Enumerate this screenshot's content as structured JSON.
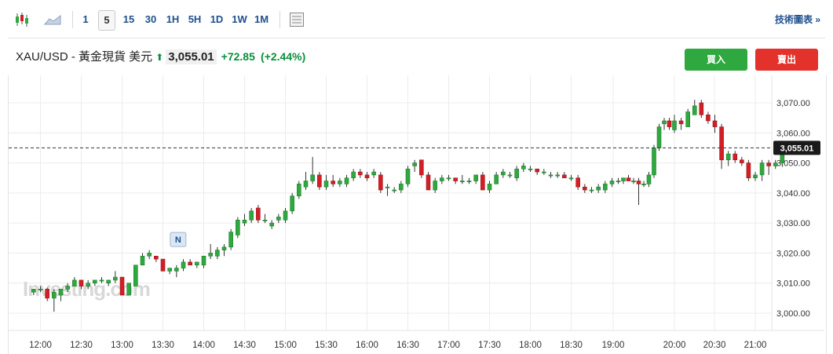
{
  "toolbar": {
    "icons": [
      "candlestick-icon",
      "area-chart-icon",
      "settings-panel-icon"
    ],
    "intervals": [
      "1",
      "5",
      "15",
      "30",
      "1H",
      "5H",
      "1D",
      "1W",
      "1M"
    ],
    "active_interval": "5",
    "tech_chart_link": "技術圖表 »"
  },
  "header": {
    "symbol": "XAU/USD - 黃金現貨 美元",
    "arrow": "⬆",
    "price": "3,055.01",
    "change": "+72.85",
    "change_pct": "(+2.44%)",
    "buy_label": "買入",
    "sell_label": "賣出"
  },
  "watermark": "Investing.com",
  "event_marker": "N",
  "colors": {
    "up": "#2ea83f",
    "down": "#d21f26",
    "accent": "#1f4f8c",
    "price_tag": "#1a1a1a"
  },
  "chart_data": {
    "type": "candlestick",
    "title": "",
    "xlabel": "",
    "ylabel": "",
    "ylim": [
      2995,
      3073
    ],
    "yticks": [
      3000,
      3010,
      3020,
      3030,
      3040,
      3050,
      3060,
      3070
    ],
    "ytick_labels": [
      "3,000.00",
      "3,010.00",
      "3,020.00",
      "3,030.00",
      "3,040.00",
      "3,050.00",
      "3,060.00",
      "3,070.00"
    ],
    "xtick_labels": [
      "12:00",
      "12:30",
      "13:00",
      "13:30",
      "14:00",
      "14:30",
      "15:00",
      "15:30",
      "16:00",
      "16:30",
      "17:00",
      "17:30",
      "18:00",
      "18:30",
      "19:00",
      "20:00",
      "20:30",
      "21:00"
    ],
    "grid": true,
    "current_price": 3055.01,
    "current_price_label": "3,055.01",
    "candles": [
      [
        "11:55",
        3007,
        3008,
        3006,
        3008
      ],
      [
        "12:00",
        3008,
        3009,
        3007,
        3008
      ],
      [
        "12:05",
        3008,
        3008.5,
        3004,
        3005
      ],
      [
        "12:10",
        3005,
        3008,
        3000.5,
        3007
      ],
      [
        "12:15",
        3006,
        3008,
        3004,
        3008
      ],
      [
        "12:20",
        3008,
        3010,
        3007,
        3009
      ],
      [
        "12:25",
        3009,
        3012,
        3009,
        3011
      ],
      [
        "12:30",
        3011,
        3011,
        3008,
        3009
      ],
      [
        "12:35",
        3009,
        3011,
        3008,
        3010
      ],
      [
        "12:40",
        3010,
        3011,
        3009,
        3011
      ],
      [
        "12:45",
        3011,
        3012,
        3010,
        3011
      ],
      [
        "12:50",
        3010,
        3011,
        3009,
        3011
      ],
      [
        "12:55",
        3011,
        3014,
        3010,
        3012
      ],
      [
        "13:00",
        3012,
        3012,
        3006,
        3006
      ],
      [
        "13:05",
        3006,
        3010,
        3006,
        3010
      ],
      [
        "13:10",
        3009,
        3016,
        3009,
        3016
      ],
      [
        "13:15",
        3016,
        3020,
        3016,
        3019
      ],
      [
        "13:20",
        3019,
        3021,
        3018,
        3020
      ],
      [
        "13:25",
        3019,
        3019,
        3017,
        3018
      ],
      [
        "13:30",
        3018,
        3018,
        3014,
        3014
      ],
      [
        "13:35",
        3014,
        3015,
        3013,
        3015
      ],
      [
        "13:40",
        3014,
        3016,
        3012,
        3015
      ],
      [
        "13:45",
        3015,
        3018,
        3014,
        3017
      ],
      [
        "13:50",
        3017,
        3018,
        3016,
        3016
      ],
      [
        "13:55",
        3016,
        3017,
        3015,
        3017
      ],
      [
        "14:00",
        3016,
        3019,
        3015,
        3019
      ],
      [
        "14:05",
        3019,
        3023,
        3018,
        3020
      ],
      [
        "14:10",
        3019,
        3022,
        3018,
        3021
      ],
      [
        "14:15",
        3021,
        3023,
        3019,
        3022
      ],
      [
        "14:20",
        3022,
        3028,
        3021,
        3027
      ],
      [
        "14:25",
        3026,
        3032,
        3025,
        3031
      ],
      [
        "14:30",
        3030,
        3033,
        3029,
        3031
      ],
      [
        "14:35",
        3031,
        3035,
        3030,
        3034
      ],
      [
        "14:40",
        3035,
        3036,
        3030,
        3031
      ],
      [
        "14:45",
        3031,
        3033,
        3030,
        3031
      ],
      [
        "14:50",
        3029,
        3031,
        3028,
        3030
      ],
      [
        "14:55",
        3031,
        3033,
        3030,
        3032
      ],
      [
        "15:00",
        3031,
        3035,
        3030,
        3034
      ],
      [
        "15:05",
        3034,
        3040,
        3033,
        3039
      ],
      [
        "15:10",
        3039,
        3044,
        3038,
        3043
      ],
      [
        "15:15",
        3042,
        3047,
        3041,
        3044
      ],
      [
        "15:20",
        3044,
        3052,
        3043,
        3046
      ],
      [
        "15:25",
        3046,
        3047,
        3041,
        3042
      ],
      [
        "15:30",
        3042,
        3046,
        3041,
        3044
      ],
      [
        "15:35",
        3044,
        3046,
        3042,
        3043
      ],
      [
        "15:40",
        3043,
        3045,
        3042,
        3044
      ],
      [
        "15:45",
        3043,
        3046,
        3042,
        3045
      ],
      [
        "15:50",
        3045,
        3048,
        3044,
        3047
      ],
      [
        "15:55",
        3047,
        3048,
        3045,
        3046
      ],
      [
        "16:00",
        3046,
        3047,
        3044,
        3045
      ],
      [
        "16:05",
        3046,
        3048,
        3045,
        3047
      ],
      [
        "16:10",
        3046,
        3047,
        3040,
        3041
      ],
      [
        "16:15",
        3042,
        3043,
        3039,
        3042
      ],
      [
        "16:20",
        3041,
        3042,
        3040,
        3041
      ],
      [
        "16:25",
        3041,
        3044,
        3040,
        3043
      ],
      [
        "16:30",
        3043,
        3049,
        3042,
        3048
      ],
      [
        "16:35",
        3049,
        3051,
        3047,
        3050
      ],
      [
        "16:40",
        3051,
        3051,
        3045,
        3046
      ],
      [
        "16:45",
        3046,
        3047,
        3041,
        3041
      ],
      [
        "16:50",
        3041,
        3045,
        3040,
        3044
      ],
      [
        "16:55",
        3044,
        3046,
        3043,
        3045
      ],
      [
        "17:00",
        3045,
        3046,
        3044,
        3045
      ],
      [
        "17:05",
        3045,
        3045,
        3043,
        3044
      ],
      [
        "17:10",
        3044,
        3046,
        3043,
        3044
      ],
      [
        "17:15",
        3044,
        3045,
        3043,
        3044
      ],
      [
        "17:20",
        3044,
        3046,
        3043,
        3046
      ],
      [
        "17:25",
        3046,
        3047,
        3041,
        3041
      ],
      [
        "17:30",
        3041,
        3044,
        3040,
        3043
      ],
      [
        "17:35",
        3043,
        3047,
        3043,
        3046
      ],
      [
        "17:40",
        3046,
        3048,
        3045,
        3047
      ],
      [
        "17:45",
        3046,
        3047,
        3045,
        3046
      ],
      [
        "17:50",
        3045,
        3049,
        3044,
        3048
      ],
      [
        "17:55",
        3048,
        3050,
        3047,
        3049
      ],
      [
        "18:00",
        3048,
        3049,
        3047,
        3048
      ],
      [
        "18:05",
        3048,
        3048,
        3046,
        3047
      ],
      [
        "18:10",
        3047,
        3048,
        3046,
        3047
      ],
      [
        "18:15",
        3046,
        3047,
        3045,
        3046
      ],
      [
        "18:20",
        3046,
        3047,
        3045,
        3046
      ],
      [
        "18:25",
        3046,
        3047,
        3045,
        3045
      ],
      [
        "18:30",
        3045,
        3046,
        3044,
        3045
      ],
      [
        "18:35",
        3045,
        3046,
        3041,
        3042
      ],
      [
        "18:40",
        3042,
        3043,
        3040,
        3041
      ],
      [
        "18:45",
        3041,
        3042,
        3040,
        3041
      ],
      [
        "18:50",
        3041,
        3043,
        3040,
        3042
      ],
      [
        "18:55",
        3041,
        3044,
        3040,
        3043
      ],
      [
        "19:00",
        3043,
        3045,
        3042,
        3044
      ],
      [
        "19:05",
        3044,
        3045,
        3043,
        3044
      ],
      [
        "19:10",
        3044,
        3045,
        3043,
        3045
      ],
      [
        "19:15",
        3045,
        3046,
        3044,
        3044
      ],
      [
        "19:20",
        3044,
        3045,
        3043,
        3044
      ],
      [
        "19:25",
        3044,
        3045,
        3036,
        3043
      ],
      [
        "19:30",
        3043,
        3044,
        3042,
        3043
      ],
      [
        "19:35",
        3043,
        3047,
        3042,
        3046
      ],
      [
        "19:40",
        3046,
        3056,
        3045,
        3055
      ],
      [
        "19:45",
        3055,
        3063,
        3054,
        3062
      ],
      [
        "19:50",
        3063,
        3065,
        3061,
        3064
      ],
      [
        "19:55",
        3064,
        3065,
        3061,
        3062
      ],
      [
        "20:00",
        3061,
        3066,
        3060,
        3064
      ],
      [
        "20:05",
        3064,
        3065,
        3061,
        3063
      ],
      [
        "20:10",
        3062,
        3068,
        3062,
        3067
      ],
      [
        "20:15",
        3066,
        3071,
        3066,
        3069
      ],
      [
        "20:20",
        3070,
        3071,
        3065,
        3066
      ],
      [
        "20:25",
        3066,
        3067,
        3063,
        3064
      ],
      [
        "20:30",
        3064,
        3066,
        3060,
        3062
      ],
      [
        "20:35",
        3062,
        3063,
        3048,
        3051
      ],
      [
        "20:40",
        3051,
        3054,
        3049,
        3053
      ],
      [
        "20:45",
        3053,
        3054,
        3050,
        3051
      ],
      [
        "20:50",
        3051,
        3052,
        3049,
        3050
      ],
      [
        "20:55",
        3050,
        3051,
        3044,
        3045
      ],
      [
        "21:00",
        3045,
        3047,
        3044,
        3046
      ],
      [
        "21:05",
        3046,
        3051,
        3044,
        3050
      ],
      [
        "21:10",
        3050,
        3051,
        3046,
        3049
      ],
      [
        "21:15",
        3049,
        3051,
        3048,
        3050
      ],
      [
        "21:20",
        3050,
        3056,
        3049,
        3055
      ]
    ]
  }
}
